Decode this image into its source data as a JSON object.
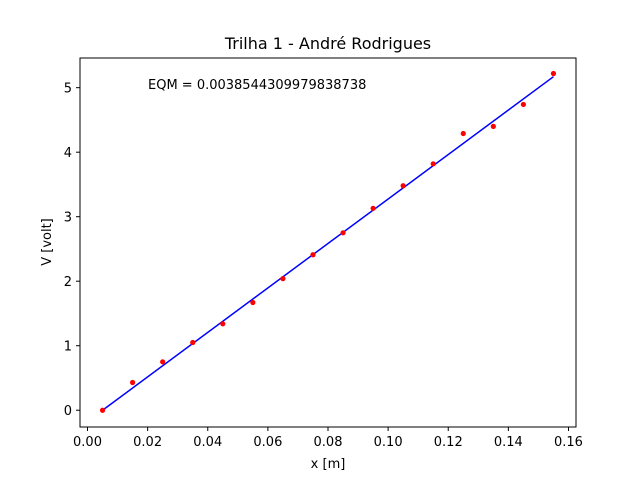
{
  "chart_data": {
    "type": "scatter",
    "title": "Trilha 1 - André Rodrigues",
    "xlabel": "x [m]",
    "ylabel": "V [volt]",
    "annotation": "EQM = 0.0038544309979838738",
    "xlim": [
      -0.0025,
      0.1625
    ],
    "ylim": [
      -0.26,
      5.46
    ],
    "x_ticks": [
      0.0,
      0.02,
      0.04,
      0.06,
      0.08,
      0.1,
      0.12,
      0.14,
      0.16
    ],
    "x_tick_labels": [
      "0.00",
      "0.02",
      "0.04",
      "0.06",
      "0.08",
      "0.10",
      "0.12",
      "0.14",
      "0.16"
    ],
    "y_ticks": [
      0,
      1,
      2,
      3,
      4,
      5
    ],
    "y_tick_labels": [
      "0",
      "1",
      "2",
      "3",
      "4",
      "5"
    ],
    "grid": false,
    "series": [
      {
        "kind": "scatter",
        "color": "#ff0000",
        "x": [
          0.005,
          0.015,
          0.025,
          0.035,
          0.045,
          0.055,
          0.065,
          0.075,
          0.085,
          0.095,
          0.105,
          0.115,
          0.125,
          0.135,
          0.145,
          0.155
        ],
        "y": [
          0.0,
          0.43,
          0.75,
          1.05,
          1.34,
          1.67,
          2.04,
          2.41,
          2.75,
          3.13,
          3.48,
          3.82,
          4.29,
          4.4,
          4.74,
          5.22
        ]
      },
      {
        "kind": "line",
        "color": "#0000ff",
        "x": [
          0.005,
          0.155
        ],
        "y": [
          0.0,
          5.17
        ]
      }
    ]
  }
}
